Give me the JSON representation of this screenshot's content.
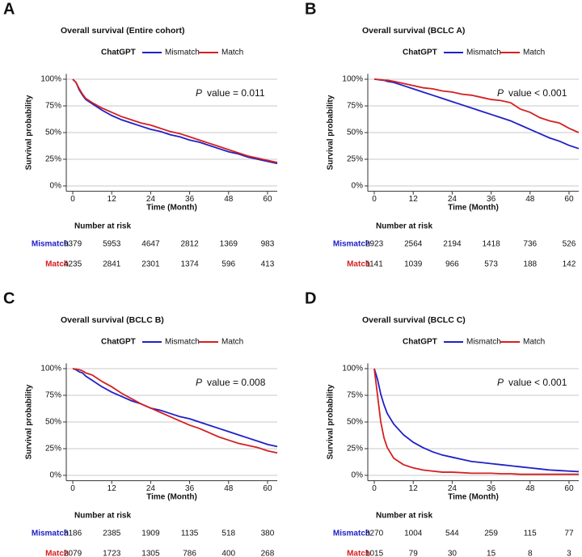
{
  "chart_data": [
    {
      "type": "line",
      "panel": "A",
      "title": "Overall survival (Entire cohort)",
      "legend_title": "ChatGPT",
      "x": [
        0,
        1,
        2,
        3,
        4,
        6,
        9,
        12,
        15,
        18,
        21,
        24,
        27,
        30,
        33,
        36,
        39,
        42,
        45,
        48,
        51,
        54,
        57,
        60,
        63
      ],
      "series": [
        {
          "name": "Mismatch",
          "color": "#2020c8",
          "values": [
            100,
            97,
            90,
            85,
            81,
            77,
            71,
            66,
            62,
            59,
            56,
            53,
            51,
            48,
            46,
            43,
            41,
            38,
            35,
            32,
            30,
            27,
            25,
            23,
            21
          ]
        },
        {
          "name": "Match",
          "color": "#d42020",
          "values": [
            100,
            97,
            91,
            86,
            82,
            78,
            73,
            69,
            65,
            62,
            59,
            57,
            54,
            51,
            49,
            46,
            43,
            40,
            37,
            34,
            31,
            28,
            26,
            24,
            22
          ]
        }
      ],
      "xlim": [
        -2,
        63
      ],
      "ylim": [
        -5,
        105
      ],
      "xticks": [
        0,
        12,
        24,
        36,
        48,
        60
      ],
      "yticks": [
        {
          "value": 0,
          "label": "0%"
        },
        {
          "value": 25,
          "label": "25%"
        },
        {
          "value": 50,
          "label": "50%"
        },
        {
          "value": 75,
          "label": "75%"
        },
        {
          "value": 100,
          "label": "100%"
        }
      ],
      "grid": true,
      "xlabel": "Time (Month)",
      "ylabel": "Survival probability",
      "annotation": {
        "italic": "P",
        "text": "value = 0.011"
      },
      "at_risk": {
        "title": "Number at risk",
        "counts": [
          [
            9379,
            5953,
            4647,
            2812,
            1369,
            983
          ],
          [
            4235,
            2841,
            2301,
            1374,
            596,
            413
          ]
        ]
      }
    },
    {
      "type": "line",
      "panel": "B",
      "title": "Overall survival (BCLC A)",
      "legend_title": "ChatGPT",
      "x": [
        0,
        1,
        2,
        3,
        4,
        6,
        9,
        12,
        15,
        18,
        21,
        24,
        27,
        30,
        33,
        36,
        39,
        42,
        45,
        48,
        51,
        54,
        57,
        60,
        63
      ],
      "series": [
        {
          "name": "Mismatch",
          "color": "#2020c8",
          "values": [
            100,
            99.7,
            99.3,
            99,
            98,
            97,
            94,
            91,
            88,
            85,
            82,
            79,
            76,
            73,
            70,
            67,
            64,
            61,
            57,
            53,
            49,
            45,
            42,
            38,
            35
          ]
        },
        {
          "name": "Match",
          "color": "#d42020",
          "values": [
            100,
            99.8,
            99.5,
            99,
            99,
            98,
            96,
            94,
            92,
            91,
            89,
            88,
            86,
            85,
            83,
            81,
            80,
            78,
            72,
            69,
            64,
            61,
            59,
            54,
            50
          ]
        }
      ],
      "xlim": [
        -2,
        63
      ],
      "ylim": [
        -5,
        105
      ],
      "xticks": [
        0,
        12,
        24,
        36,
        48,
        60
      ],
      "yticks": [
        {
          "value": 0,
          "label": "0%"
        },
        {
          "value": 25,
          "label": "25%"
        },
        {
          "value": 50,
          "label": "50%"
        },
        {
          "value": 75,
          "label": "75%"
        },
        {
          "value": 100,
          "label": "100%"
        }
      ],
      "grid": true,
      "xlabel": "Time (Month)",
      "ylabel": "Survival probability",
      "annotation": {
        "italic": "P",
        "text": "value < 0.001"
      },
      "at_risk": {
        "title": "Number at risk",
        "counts": [
          [
            2923,
            2564,
            2194,
            1418,
            736,
            526
          ],
          [
            1141,
            1039,
            966,
            573,
            188,
            142
          ]
        ]
      }
    },
    {
      "type": "line",
      "panel": "C",
      "title": "Overall survival (BCLC B)",
      "legend_title": "ChatGPT",
      "x": [
        0,
        1,
        2,
        3,
        4,
        6,
        9,
        12,
        15,
        18,
        21,
        24,
        27,
        30,
        33,
        36,
        39,
        42,
        45,
        48,
        51,
        54,
        57,
        60,
        63
      ],
      "series": [
        {
          "name": "Mismatch",
          "color": "#2020c8",
          "values": [
            100,
            99,
            97,
            96,
            93,
            89,
            83,
            78,
            74,
            70,
            67,
            63,
            61,
            58,
            55,
            53,
            50,
            47,
            44,
            41,
            38,
            35,
            32,
            29,
            27
          ]
        },
        {
          "name": "Match",
          "color": "#d42020",
          "values": [
            100,
            99.5,
            99,
            98,
            96,
            94,
            88,
            83,
            77,
            72,
            67,
            63,
            59,
            55,
            51,
            47,
            44,
            40,
            36,
            33,
            30,
            28,
            26,
            23,
            21
          ]
        }
      ],
      "xlim": [
        -2,
        63
      ],
      "ylim": [
        -5,
        105
      ],
      "xticks": [
        0,
        12,
        24,
        36,
        48,
        60
      ],
      "yticks": [
        {
          "value": 0,
          "label": "0%"
        },
        {
          "value": 25,
          "label": "25%"
        },
        {
          "value": 50,
          "label": "50%"
        },
        {
          "value": 75,
          "label": "75%"
        },
        {
          "value": 100,
          "label": "100%"
        }
      ],
      "grid": true,
      "xlabel": "Time (Month)",
      "ylabel": "Survival probability",
      "annotation": {
        "italic": "P",
        "text": "value = 0.008"
      },
      "at_risk": {
        "title": "Number at risk",
        "counts": [
          [
            3186,
            2385,
            1909,
            1135,
            518,
            380
          ],
          [
            2079,
            1723,
            1305,
            786,
            400,
            268
          ]
        ]
      }
    },
    {
      "type": "line",
      "panel": "D",
      "title": "Overall survival (BCLC C)",
      "legend_title": "ChatGPT",
      "x": [
        0,
        1,
        2,
        3,
        4,
        6,
        9,
        12,
        15,
        18,
        21,
        24,
        27,
        30,
        33,
        36,
        39,
        42,
        45,
        48,
        51,
        54,
        57,
        60,
        63
      ],
      "series": [
        {
          "name": "Mismatch",
          "color": "#2020c8",
          "values": [
            100,
            90,
            76,
            66,
            58,
            48,
            38,
            31,
            26,
            22,
            19,
            17,
            15,
            13,
            12,
            11,
            10,
            9,
            8,
            7,
            6,
            5,
            4.5,
            4,
            3.5
          ]
        },
        {
          "name": "Match",
          "color": "#d42020",
          "values": [
            100,
            75,
            50,
            35,
            26,
            16,
            10,
            7,
            5,
            4,
            3,
            3,
            2.5,
            2,
            2,
            2,
            1.5,
            1.5,
            1,
            1,
            1,
            1,
            1,
            1,
            1
          ]
        }
      ],
      "xlim": [
        -2,
        63
      ],
      "ylim": [
        -5,
        105
      ],
      "xticks": [
        0,
        12,
        24,
        36,
        48,
        60
      ],
      "yticks": [
        {
          "value": 0,
          "label": "0%"
        },
        {
          "value": 25,
          "label": "25%"
        },
        {
          "value": 50,
          "label": "50%"
        },
        {
          "value": 75,
          "label": "75%"
        },
        {
          "value": 100,
          "label": "100%"
        }
      ],
      "grid": true,
      "xlabel": "Time (Month)",
      "ylabel": "Survival probability",
      "annotation": {
        "italic": "P",
        "text": "value < 0.001"
      },
      "at_risk": {
        "title": "Number at risk",
        "counts": [
          [
            3270,
            1004,
            544,
            259,
            115,
            77
          ],
          [
            1015,
            79,
            30,
            15,
            8,
            3
          ]
        ]
      }
    }
  ]
}
